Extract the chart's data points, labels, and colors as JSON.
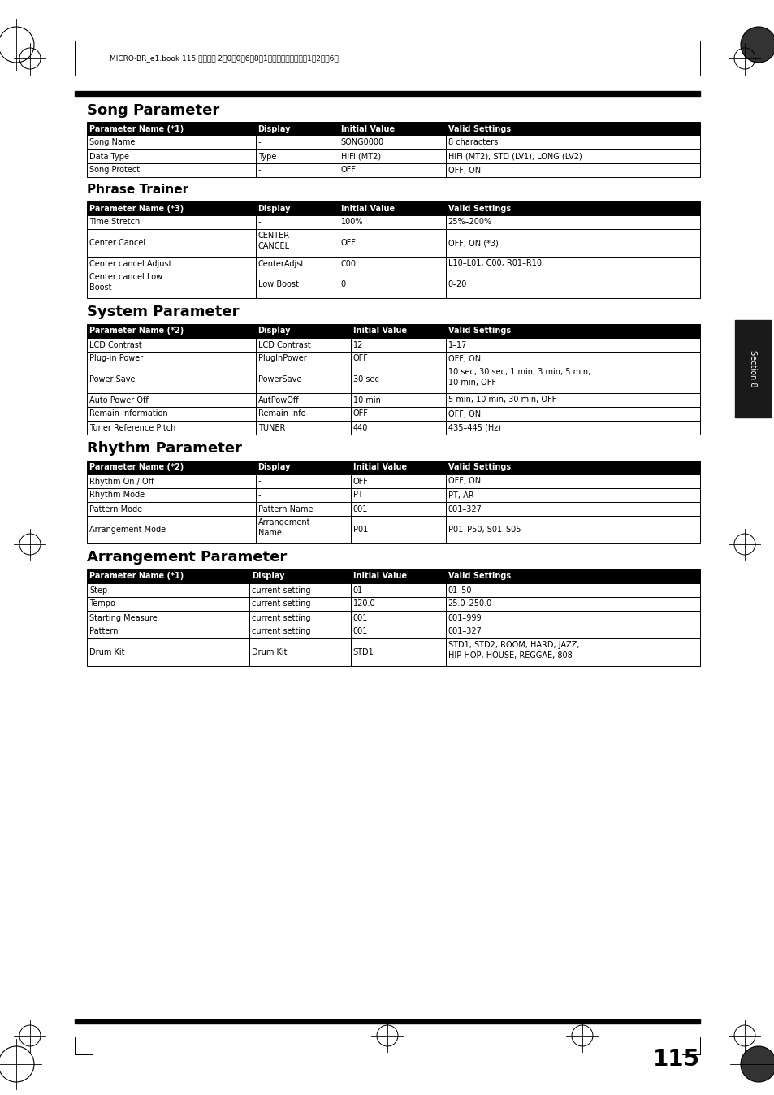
{
  "page_number": "115",
  "section_label": "Section 8",
  "title1": "Song Parameter",
  "title2": "Phrase Trainer",
  "title3": "System Parameter",
  "title4": "Rhythm Parameter",
  "title5": "Arrangement Parameter",
  "col_headers_1": [
    "Parameter Name (*1)",
    "Display",
    "Initial Value",
    "Valid Settings"
  ],
  "song_param_rows": [
    [
      "Song Name",
      "-",
      "SONG0000",
      "8 characters"
    ],
    [
      "Data Type",
      "Type",
      "HiFi (MT2)",
      "HiFi (MT2), STD (LV1), LONG (LV2)"
    ],
    [
      "Song Protect",
      "-",
      "OFF",
      "OFF, ON"
    ]
  ],
  "col_headers_3": [
    "Parameter Name (*3)",
    "Display",
    "Initial Value",
    "Valid Settings"
  ],
  "phrase_trainer_rows": [
    [
      "Time Stretch",
      "-",
      "100%",
      "25%–200%"
    ],
    [
      "Center Cancel",
      "CENTER\nCANCEL",
      "OFF",
      "OFF, ON (*3)"
    ],
    [
      "Center cancel Adjust",
      "CenterAdjst",
      "C00",
      "L10–L01, C00, R01–R10"
    ],
    [
      "Center cancel Low\nBoost",
      "Low Boost",
      "0",
      "0–20"
    ]
  ],
  "col_headers_2": [
    "Parameter Name (*2)",
    "Display",
    "Initial Value",
    "Valid Settings"
  ],
  "system_param_rows": [
    [
      "LCD Contrast",
      "LCD Contrast",
      "12",
      "1–17"
    ],
    [
      "Plug-in Power",
      "PlugInPower",
      "OFF",
      "OFF, ON"
    ],
    [
      "Power Save",
      "PowerSave",
      "30 sec",
      "10 sec, 30 sec, 1 min, 3 min, 5 min,\n10 min, OFF"
    ],
    [
      "Auto Power Off",
      "AutPowOff",
      "10 min",
      "5 min, 10 min, 30 min, OFF"
    ],
    [
      "Remain Information",
      "Remain Info",
      "OFF",
      "OFF, ON"
    ],
    [
      "Tuner Reference Pitch",
      "TUNER",
      "440",
      "435–445 (Hz)"
    ]
  ],
  "col_headers_r2": [
    "Parameter Name (*2)",
    "Display",
    "Initial Value",
    "Valid Settings"
  ],
  "rhythm_param_rows": [
    [
      "Rhythm On / Off",
      "-",
      "OFF",
      "OFF, ON"
    ],
    [
      "Rhythm Mode",
      "-",
      "PT",
      "PT, AR"
    ],
    [
      "Pattern Mode",
      "Pattern Name",
      "001",
      "001–327"
    ],
    [
      "Arrangement Mode",
      "Arrangement\nName",
      "P01",
      "P01–P50, S01–S05"
    ]
  ],
  "col_headers_a1": [
    "Parameter Name (*1)",
    "Display",
    "Initial Value",
    "Valid Settings"
  ],
  "arrangement_param_rows": [
    [
      "Step",
      "current setting",
      "01",
      "01–50"
    ],
    [
      "Tempo",
      "current setting",
      "120.0",
      "25.0–250.0"
    ],
    [
      "Starting Measure",
      "current setting",
      "001",
      "001–999"
    ],
    [
      "Pattern",
      "current setting",
      "001",
      "001–327"
    ],
    [
      "Drum Kit",
      "Drum Kit",
      "STD1",
      "STD1, STD2, ROOM, HARD, JAZZ,\nHIP-HOP, HOUSE, REGGAE, 808"
    ]
  ],
  "header_bg": "#000000",
  "header_fg": "#ffffff",
  "row_bg_white": "#ffffff",
  "border_color": "#000000",
  "title_color": "#000000",
  "page_bg": "#ffffff",
  "header_text": "MICRO-BR_e1.book 115 ページ　 2・0・0・6年8月1日　火曜日　午後・1・2時・6分"
}
